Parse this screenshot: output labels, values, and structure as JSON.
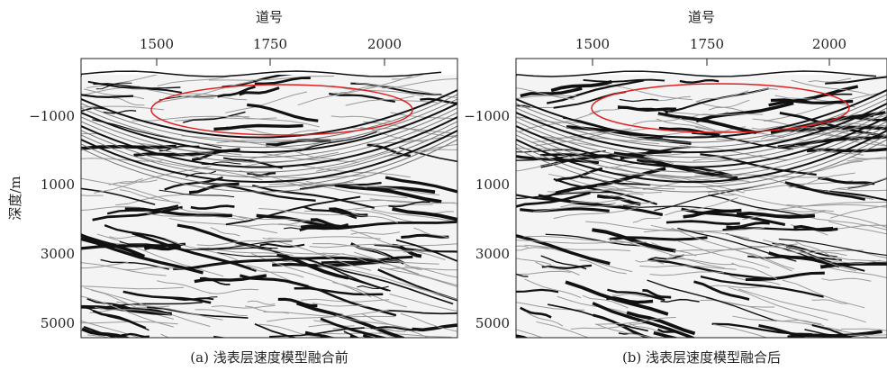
{
  "y_label": "深度/m",
  "panels": [
    {
      "x_label": "道号",
      "x_ticks": [
        "1500",
        "1750",
        "2000"
      ],
      "y_ticks": [
        "−1000",
        "1000",
        "3000",
        "5000"
      ],
      "caption": "(a) 浅表层速度模型融合前"
    },
    {
      "x_label": "道号",
      "x_ticks": [
        "1500",
        "1750",
        "2000"
      ],
      "y_ticks": [
        "−1000",
        "1000",
        "3000",
        "5000"
      ],
      "caption": "(b) 浅表层速度模型融合后"
    }
  ]
}
